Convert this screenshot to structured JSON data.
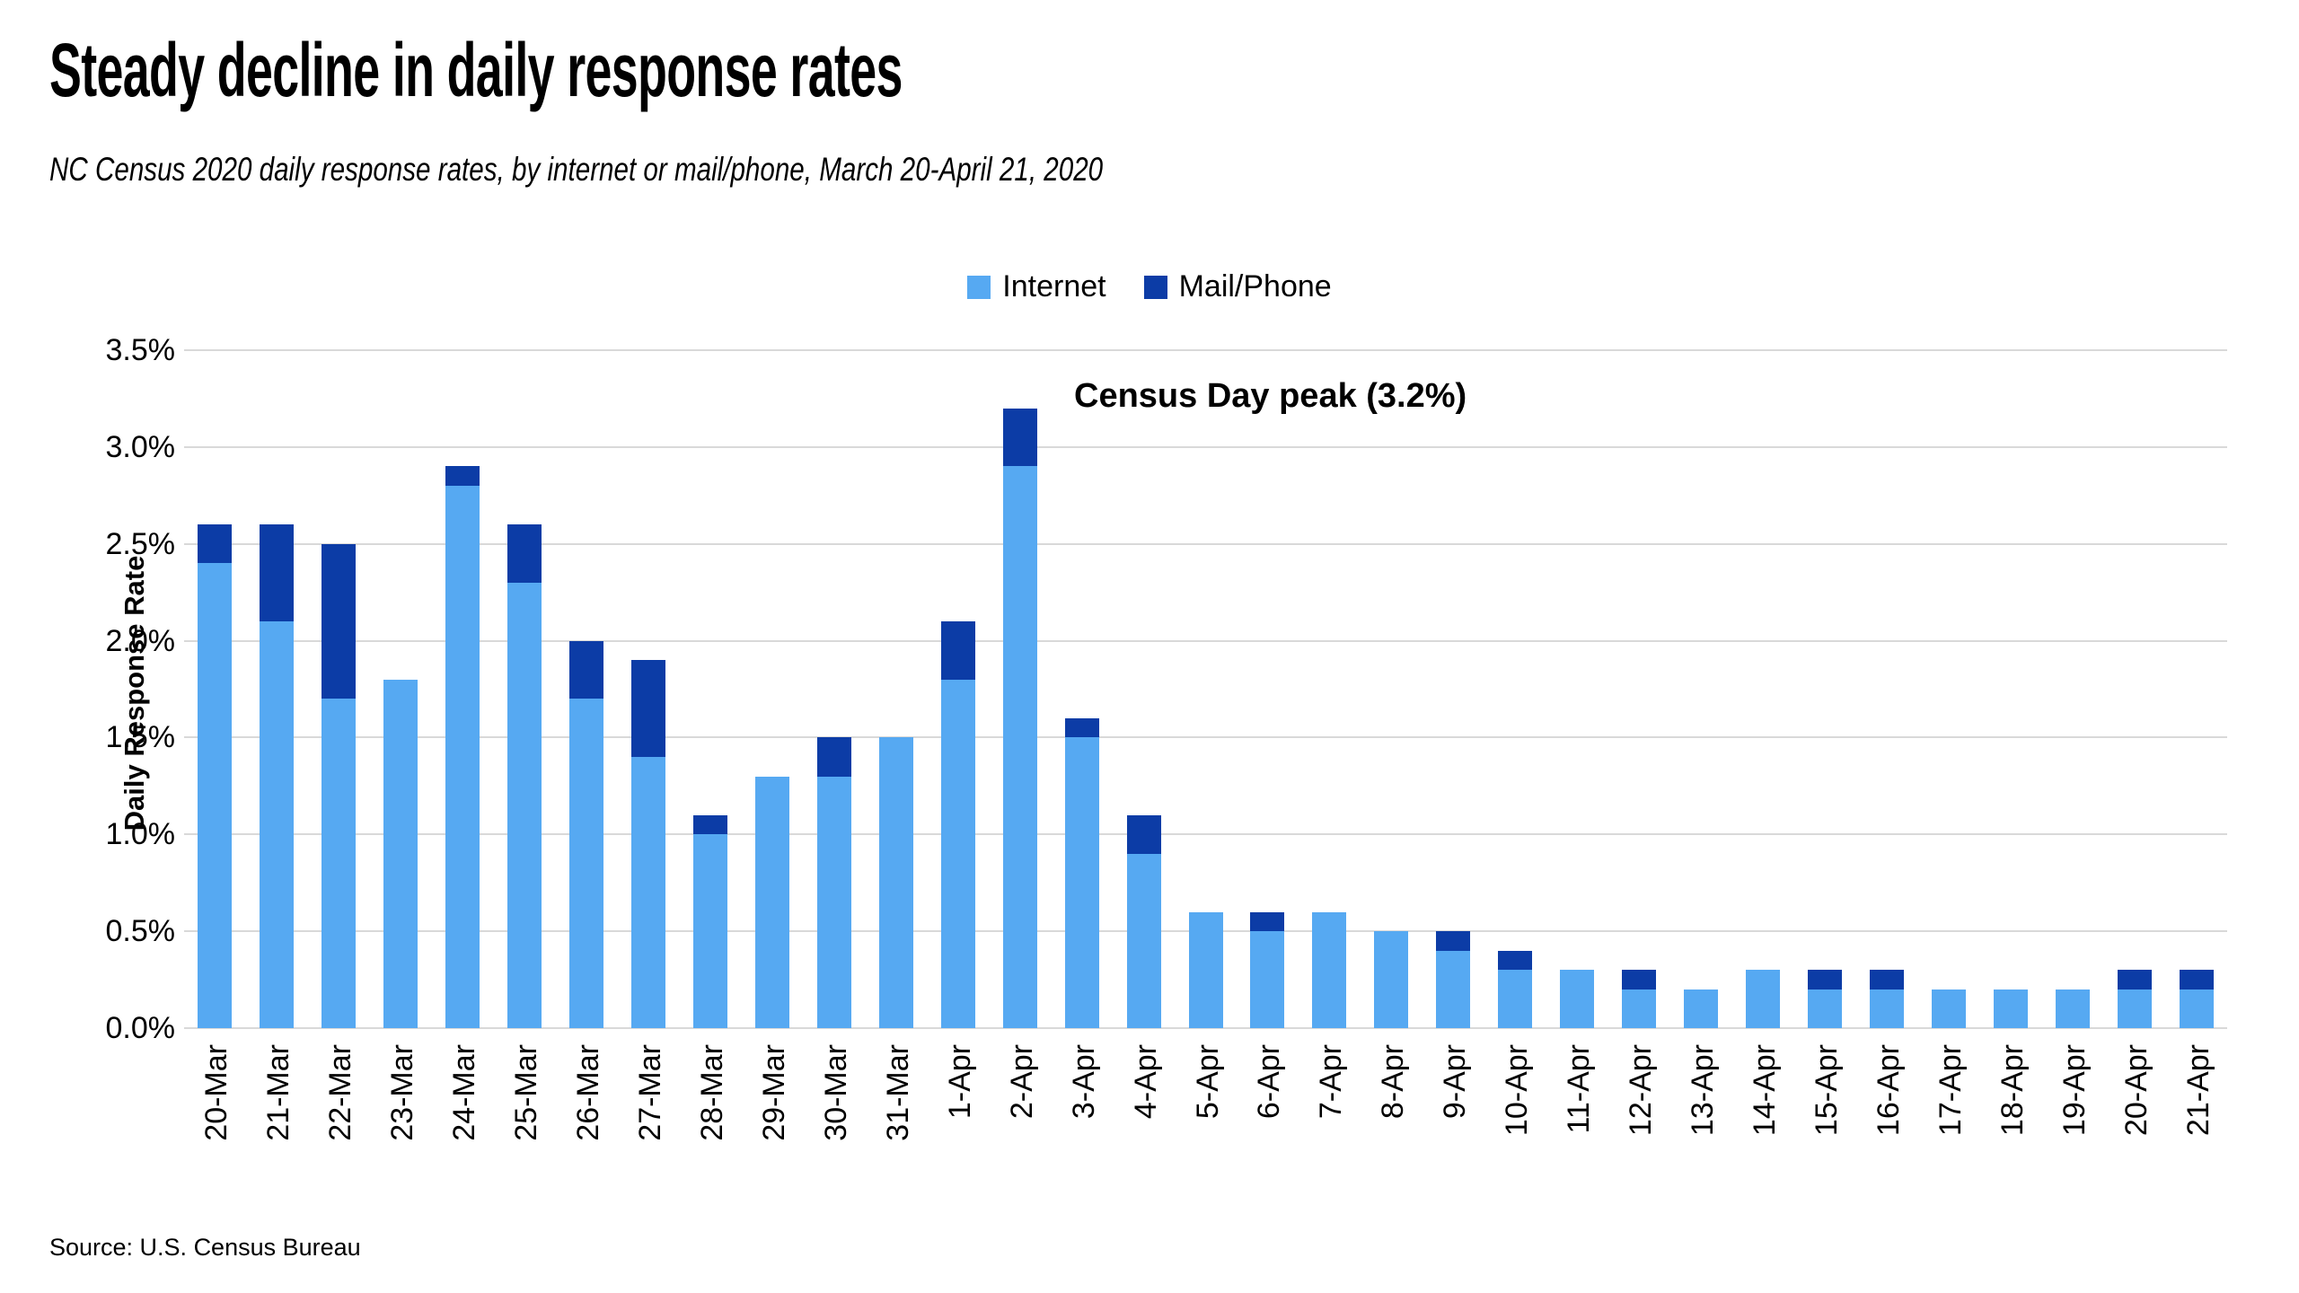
{
  "page": {
    "title": "Steady decline in daily response rates",
    "subtitle": "NC Census 2020 daily response rates, by internet or mail/phone, March 20-April 21, 2020",
    "source": "Source: U.S. Census Bureau"
  },
  "chart_data": {
    "type": "bar",
    "stacked": true,
    "title": "Steady decline in daily response rates",
    "subtitle": "NC Census 2020 daily response rates, by internet or mail/phone, March 20-April 21, 2020",
    "ylabel": "Daily Response Rate",
    "xlabel": "",
    "ylim": [
      0,
      3.5
    ],
    "yticks": [
      0,
      0.5,
      1.0,
      1.5,
      2.0,
      2.5,
      3.0,
      3.5
    ],
    "ytick_labels": [
      "0.0%",
      "0.5%",
      "1.0%",
      "1.5%",
      "2.0%",
      "2.5%",
      "3.0%",
      "3.5%"
    ],
    "grid": true,
    "legend_position": "top-center",
    "annotation": "Census Day peak (3.2%)",
    "annotation_target": {
      "category": "2-Apr",
      "total": 3.2
    },
    "categories": [
      "20-Mar",
      "21-Mar",
      "22-Mar",
      "23-Mar",
      "24-Mar",
      "25-Mar",
      "26-Mar",
      "27-Mar",
      "28-Mar",
      "29-Mar",
      "30-Mar",
      "31-Mar",
      "1-Apr",
      "2-Apr",
      "3-Apr",
      "4-Apr",
      "5-Apr",
      "6-Apr",
      "7-Apr",
      "8-Apr",
      "9-Apr",
      "10-Apr",
      "11-Apr",
      "12-Apr",
      "13-Apr",
      "14-Apr",
      "15-Apr",
      "16-Apr",
      "17-Apr",
      "18-Apr",
      "19-Apr",
      "20-Apr",
      "21-Apr"
    ],
    "series": [
      {
        "name": "Internet",
        "color": "#56a9f2",
        "values": [
          2.4,
          2.1,
          1.7,
          1.8,
          2.8,
          2.3,
          1.7,
          1.4,
          1.0,
          1.3,
          1.3,
          1.5,
          1.8,
          2.9,
          1.5,
          0.9,
          0.6,
          0.5,
          0.6,
          0.5,
          0.4,
          0.3,
          0.3,
          0.2,
          0.2,
          0.3,
          0.2,
          0.2,
          0.2,
          0.2,
          0.2,
          0.2,
          0.2
        ]
      },
      {
        "name": "Mail/Phone",
        "color": "#0c3ca6",
        "values": [
          0.2,
          0.5,
          0.8,
          0.0,
          0.1,
          0.3,
          0.3,
          0.5,
          0.1,
          0.0,
          0.2,
          0.0,
          0.3,
          0.3,
          0.1,
          0.2,
          0.0,
          0.1,
          0.0,
          0.0,
          0.1,
          0.1,
          0.0,
          0.1,
          0.0,
          0.0,
          0.1,
          0.1,
          0.0,
          0.0,
          0.0,
          0.1,
          0.1
        ]
      }
    ],
    "colors": {
      "background": "#ffffff",
      "gridline": "#d9d9d9",
      "text": "#000000"
    }
  }
}
